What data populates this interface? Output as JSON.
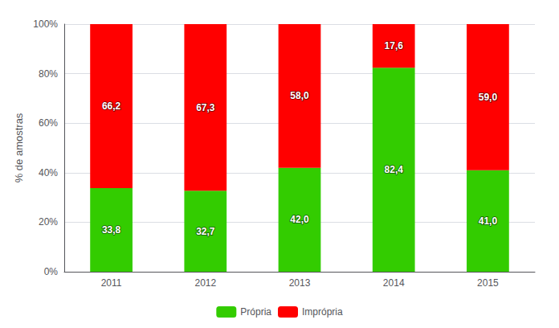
{
  "chart_data": {
    "type": "bar",
    "stacked": true,
    "categories": [
      "2011",
      "2012",
      "2013",
      "2014",
      "2015"
    ],
    "ylabel": "% de amostras",
    "ylim": [
      0,
      100
    ],
    "yticks": [
      {
        "value": 0,
        "label": "0%"
      },
      {
        "value": 20,
        "label": "20%"
      },
      {
        "value": 40,
        "label": "40%"
      },
      {
        "value": 60,
        "label": "60%"
      },
      {
        "value": 80,
        "label": "80%"
      },
      {
        "value": 100,
        "label": "100%"
      }
    ],
    "grid": true,
    "legend": "bottom",
    "data_labels": true,
    "series": [
      {
        "name": "Própria",
        "color": "#33CC00",
        "values": [
          33.8,
          32.7,
          42.0,
          82.4,
          41.0
        ],
        "value_labels": [
          "33,8",
          "32,7",
          "42,0",
          "82,4",
          "41,0"
        ]
      },
      {
        "name": "Imprópria",
        "color": "#FF0000",
        "values": [
          66.2,
          67.3,
          58.0,
          17.6,
          59.0
        ],
        "value_labels": [
          "66,2",
          "67,3",
          "58,0",
          "17,6",
          "59,0"
        ]
      }
    ]
  }
}
